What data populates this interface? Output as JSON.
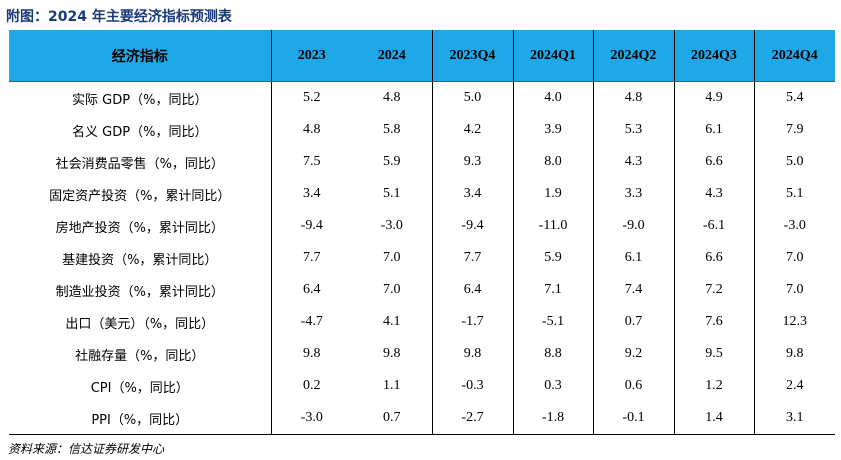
{
  "title": "附图：2024 年主要经济指标预测表",
  "header": [
    "经济指标",
    "2023",
    "2024",
    "2023Q4",
    "2024Q1",
    "2024Q2",
    "2024Q3",
    "2024Q4"
  ],
  "rows": [
    {
      "label": "实际 GDP（%，同比）",
      "values": [
        "5.2",
        "4.8",
        "5.0",
        "4.0",
        "4.8",
        "4.9",
        "5.4"
      ]
    },
    {
      "label": "名义 GDP（%，同比）",
      "values": [
        "4.8",
        "5.8",
        "4.2",
        "3.9",
        "5.3",
        "6.1",
        "7.9"
      ]
    },
    {
      "label": "社会消费品零售（%，同比）",
      "values": [
        "7.5",
        "5.9",
        "9.3",
        "8.0",
        "4.3",
        "6.6",
        "5.0"
      ]
    },
    {
      "label": "固定资产投资（%，累计同比）",
      "values": [
        "3.4",
        "5.1",
        "3.4",
        "1.9",
        "3.3",
        "4.3",
        "5.1"
      ]
    },
    {
      "label": "房地产投资（%，累计同比）",
      "values": [
        "-9.4",
        "-3.0",
        "-9.4",
        "-11.0",
        "-9.0",
        "-6.1",
        "-3.0"
      ]
    },
    {
      "label": "基建投资（%，累计同比）",
      "values": [
        "7.7",
        "7.0",
        "7.7",
        "5.9",
        "6.1",
        "6.6",
        "7.0"
      ]
    },
    {
      "label": "制造业投资（%，累计同比）",
      "values": [
        "6.4",
        "7.0",
        "6.4",
        "7.1",
        "7.4",
        "7.2",
        "7.0"
      ]
    },
    {
      "label": "出口（美元）（%，同比）",
      "values": [
        "-4.7",
        "4.1",
        "-1.7",
        "-5.1",
        "0.7",
        "7.6",
        "12.3"
      ]
    },
    {
      "label": "社融存量（%，同比）",
      "values": [
        "9.8",
        "9.8",
        "9.8",
        "8.8",
        "9.2",
        "9.5",
        "9.8"
      ]
    },
    {
      "label": "CPI（%，同比）",
      "values": [
        "0.2",
        "1.1",
        "-0.3",
        "0.3",
        "0.6",
        "1.2",
        "2.4"
      ]
    },
    {
      "label": "PPI（%，同比）",
      "values": [
        "-3.0",
        "0.7",
        "-2.7",
        "-1.8",
        "-0.1",
        "1.4",
        "3.1"
      ]
    }
  ],
  "source": "资料来源：信达证券研发中心"
}
